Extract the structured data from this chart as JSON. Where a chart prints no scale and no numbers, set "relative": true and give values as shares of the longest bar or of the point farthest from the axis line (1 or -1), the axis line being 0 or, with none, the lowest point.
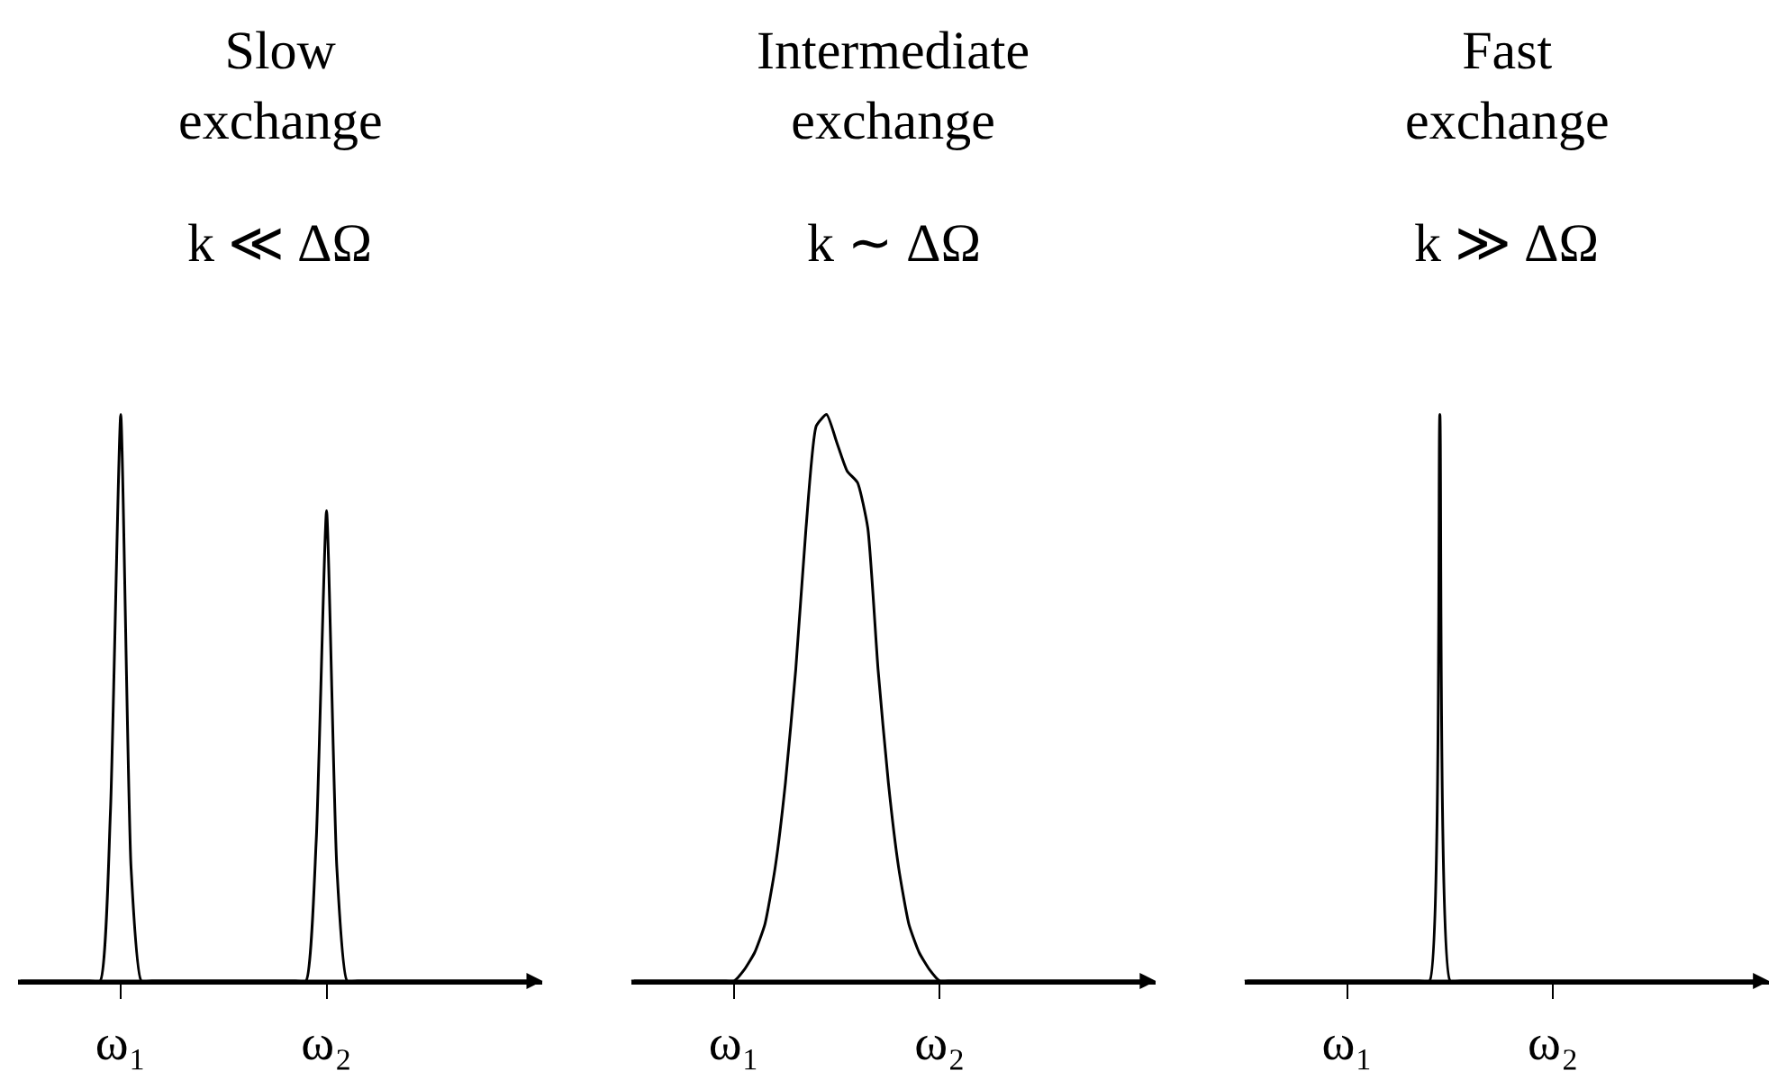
{
  "chart_data": [
    {
      "type": "line",
      "title": "Slow\nexchange",
      "subtitle": "k ≪ ΔΩ",
      "relative": true,
      "color": "#000000",
      "grid": false,
      "categories": [
        null,
        null,
        null,
        null,
        null,
        null,
        null,
        null,
        null,
        null,
        "ω₁",
        null,
        null,
        null,
        null,
        null,
        null,
        null,
        null,
        null,
        null,
        null,
        null,
        null,
        null,
        null,
        null,
        null,
        null,
        null,
        "ω₂",
        null,
        null,
        null,
        null,
        null,
        null,
        null,
        null,
        null,
        null,
        null,
        null,
        null,
        null,
        null,
        null,
        null,
        null,
        null,
        null
      ],
      "values": [
        0,
        0,
        0,
        0,
        0,
        0,
        0,
        0,
        0,
        0.3,
        1.0,
        0.2,
        0,
        0,
        0,
        0,
        0,
        0,
        0,
        0,
        0,
        0,
        0,
        0,
        0,
        0,
        0,
        0,
        0,
        0.25,
        0.83,
        0.2,
        0,
        0,
        0,
        0,
        0,
        0,
        0,
        0,
        0,
        0,
        0,
        0,
        0,
        0,
        0,
        0,
        0,
        0,
        0
      ]
    },
    {
      "type": "line",
      "title": "Intermediate\nexchange",
      "subtitle": "k ∼ ΔΩ",
      "relative": true,
      "color": "#000000",
      "grid": false,
      "categories": [
        null,
        null,
        null,
        null,
        null,
        null,
        null,
        null,
        null,
        null,
        "ω₁",
        null,
        null,
        null,
        null,
        null,
        null,
        null,
        null,
        null,
        null,
        null,
        null,
        null,
        null,
        null,
        null,
        null,
        null,
        null,
        "ω₂",
        null,
        null,
        null,
        null,
        null,
        null,
        null,
        null,
        null,
        null,
        null,
        null,
        null,
        null,
        null,
        null,
        null,
        null,
        null,
        null
      ],
      "values": [
        0,
        0,
        0,
        0,
        0,
        0,
        0,
        0,
        0,
        0,
        0,
        0.02,
        0.05,
        0.1,
        0.2,
        0.35,
        0.55,
        0.8,
        0.98,
        1.0,
        0.95,
        0.9,
        0.88,
        0.8,
        0.55,
        0.35,
        0.2,
        0.1,
        0.05,
        0.02,
        0,
        0,
        0,
        0,
        0,
        0,
        0,
        0,
        0,
        0,
        0,
        0,
        0,
        0,
        0,
        0,
        0,
        0,
        0,
        0,
        0
      ]
    },
    {
      "type": "line",
      "title": "Fast\nexchange",
      "subtitle": "k ≫ ΔΩ",
      "relative": true,
      "color": "#000000",
      "grid": false,
      "categories": [
        null,
        null,
        null,
        null,
        null,
        null,
        null,
        null,
        null,
        null,
        "ω₁",
        null,
        null,
        null,
        null,
        null,
        null,
        null,
        null,
        null,
        null,
        null,
        null,
        null,
        null,
        null,
        null,
        null,
        null,
        null,
        "ω₂",
        null,
        null,
        null,
        null,
        null,
        null,
        null,
        null,
        null,
        null,
        null,
        null,
        null,
        null,
        null,
        null,
        null,
        null,
        null,
        null
      ],
      "values": [
        0,
        0,
        0,
        0,
        0,
        0,
        0,
        0,
        0,
        0,
        0,
        0,
        0,
        0,
        0,
        0,
        0,
        0,
        0,
        1.0,
        0,
        0,
        0,
        0,
        0,
        0,
        0,
        0,
        0,
        0,
        0,
        0,
        0,
        0,
        0,
        0,
        0,
        0,
        0,
        0,
        0,
        0,
        0,
        0,
        0,
        0,
        0,
        0,
        0,
        0,
        0
      ]
    }
  ]
}
